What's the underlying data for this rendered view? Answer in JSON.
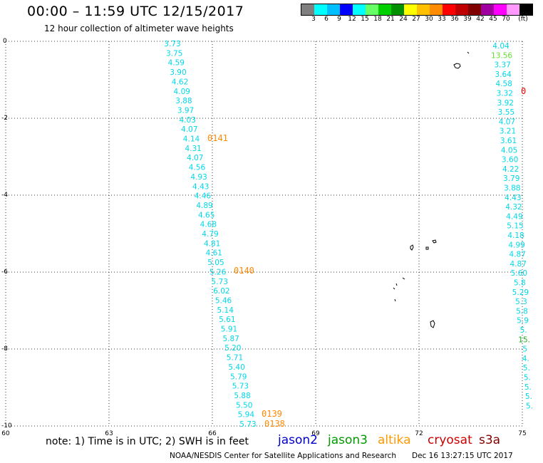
{
  "header": {
    "title": "00:00 – 11:59 UTC 12/15/2017",
    "subtitle": "12 hour collection of altimeter wave heights"
  },
  "colorbar": {
    "colors": [
      "#7f7f7f",
      "#00ffff",
      "#00bfff",
      "#0000ff",
      "#00ffff",
      "#66ff66",
      "#00d000",
      "#009000",
      "#ffff00",
      "#ffc000",
      "#ff8c00",
      "#ff0000",
      "#c00000",
      "#800000",
      "#a000a0",
      "#ff00ff",
      "#ff99ff",
      "#000000"
    ],
    "labels": [
      "3",
      "6",
      "9",
      "12",
      "15",
      "18",
      "21",
      "24",
      "27",
      "30",
      "33",
      "36",
      "39",
      "42",
      "45",
      "70",
      "(ft)"
    ]
  },
  "map": {
    "x_ticks": [
      "60",
      "63",
      "66",
      "69",
      "72",
      "75"
    ],
    "y_ticks": [
      "0",
      "-2",
      "-4",
      "-6",
      "-8",
      "-10"
    ],
    "track_a": [
      "3.73",
      "3.75",
      "4.59",
      "3.90",
      "4.62",
      "4.09",
      "3.88",
      "3.97",
      "4.03",
      "4.07",
      "4.14",
      "4.31",
      "4.07",
      "4.56",
      "4.93",
      "4.43",
      "4.46",
      "4.89",
      "4.65",
      "4.68",
      "4.79",
      "4.81",
      "4.61",
      "5.05",
      "5.26",
      "5.73",
      "6.02",
      "5.46",
      "5.14",
      "5.61",
      "5.91",
      "5.87",
      "5.20",
      "5.71",
      "5.40",
      "5.79",
      "5.73",
      "5.88",
      "5.50",
      "5.94",
      "5.73"
    ],
    "track_b": [
      "4.04",
      "13.56",
      "3.37",
      "3.64",
      "4.58",
      "3.32",
      "3.92",
      "3.55",
      "4.07",
      "3.21",
      "3.61",
      "4.05",
      "3.60",
      "4.22",
      "3.79",
      "3.88",
      "4.43",
      "4.32",
      "4.49",
      "5.15",
      "4.18",
      "4.99",
      "4.87",
      "4.87",
      "5.60",
      "5.8",
      "5.29",
      "5.3",
      "5.8",
      "5.9",
      "5.",
      "15.",
      "5",
      "4.",
      "5.",
      "5.",
      "5.",
      "5.",
      "5."
    ],
    "track_b_colors": {
      "1": "#66dd33",
      "31": "#22aa22"
    },
    "pass_labels": [
      {
        "text": "0141"
      },
      {
        "text": "0140"
      },
      {
        "text": "0139"
      },
      {
        "text": "0138"
      },
      {
        "text": "0"
      }
    ]
  },
  "footer": {
    "note": "note: 1) Time is in UTC; 2) SWH is in feet",
    "satellites": [
      {
        "name": "jason2",
        "color": "#0000cc"
      },
      {
        "name": "jason3",
        "color": "#009900"
      },
      {
        "name": "altika",
        "color": "#ff9900"
      },
      {
        "name": "cryosat",
        "color": "#cc0000"
      },
      {
        "name": "s3a",
        "color": "#800000"
      }
    ],
    "credit": "NOAA/NESDIS Center for Satellite Applications and Research",
    "timestamp": "Dec 16 13:27:15 UTC 2017"
  }
}
